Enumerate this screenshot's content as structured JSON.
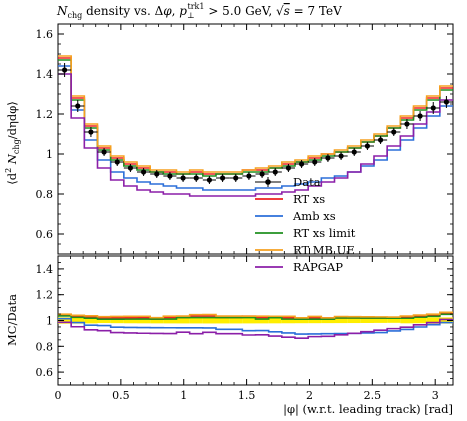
{
  "chart_data": {
    "type": "line",
    "title": "N_chg density vs. Δφ, p⊥^trk1 > 5.0 GeV, √s = 7 TeV",
    "title_parts": {
      "n": "N",
      "n_sub": "chg",
      "mid": " density vs. Δ",
      "phi": "φ",
      "comma": ", ",
      "p": "p",
      "p_sub": "⊥",
      "p_sup": "trk1",
      "cut": " > 5.0 GeV, ",
      "sqrt": "√",
      "s": "s",
      "energy": " = 7 TeV"
    },
    "ylabel_main": "⟨d²N_chg/dηdφ⟩",
    "ylabel_main_parts": {
      "open": "⟨d",
      "sq": "2",
      "n": " N",
      "n_sub": "chg",
      "rest": "/dηdφ⟩"
    },
    "ylabel_ratio": "MC/Data",
    "xlabel": "|φ| (w.r.t. leading track) [rad]",
    "xlim": [
      0,
      3.14159
    ],
    "ylim_main": [
      0.5,
      1.65
    ],
    "ylim_ratio": [
      0.5,
      1.5
    ],
    "x_ticks": [
      0,
      0.5,
      1,
      1.5,
      2,
      2.5,
      3
    ],
    "x_tick_labels": [
      "0",
      "0.5",
      "1",
      "1.5",
      "2",
      "2.5",
      "3"
    ],
    "y_ticks_main": [
      0.6,
      0.8,
      1,
      1.2,
      1.4,
      1.6
    ],
    "y_tick_labels_main": [
      "0.6",
      "0.8",
      "1",
      "1.2",
      "1.4",
      "1.6"
    ],
    "y_ticks_ratio": [
      0.6,
      0.8,
      1,
      1.2,
      1.4
    ],
    "y_tick_labels_ratio": [
      "0.6",
      "0.8",
      "1",
      "1.2",
      "1.4"
    ],
    "legend_position": "center-right",
    "data_band_color": "#ffee00",
    "x": [
      0.0524,
      0.1571,
      0.2618,
      0.3665,
      0.4712,
      0.576,
      0.6807,
      0.7854,
      0.8901,
      0.9948,
      1.0996,
      1.2043,
      1.309,
      1.4137,
      1.5184,
      1.6232,
      1.7279,
      1.8326,
      1.9373,
      2.042,
      2.1468,
      2.2515,
      2.3562,
      2.4609,
      2.5656,
      2.6704,
      2.7751,
      2.8798,
      2.9845,
      3.0892
    ],
    "series": [
      {
        "name": "Data",
        "color": "#000000",
        "style": "markers",
        "values": [
          1.42,
          1.24,
          1.11,
          1.01,
          0.96,
          0.93,
          0.91,
          0.9,
          0.89,
          0.88,
          0.88,
          0.87,
          0.88,
          0.88,
          0.89,
          0.9,
          0.91,
          0.93,
          0.95,
          0.96,
          0.98,
          0.99,
          1.01,
          1.04,
          1.07,
          1.11,
          1.15,
          1.19,
          1.23,
          1.26
        ],
        "errors": [
          0.035,
          0.03,
          0.025,
          0.02,
          0.02,
          0.02,
          0.02,
          0.02,
          0.02,
          0.02,
          0.02,
          0.02,
          0.02,
          0.02,
          0.02,
          0.02,
          0.02,
          0.02,
          0.02,
          0.02,
          0.02,
          0.02,
          0.02,
          0.02,
          0.02,
          0.02,
          0.025,
          0.025,
          0.03,
          0.03
        ]
      },
      {
        "name": "RT xs",
        "color": "#ee2222",
        "style": "histogram",
        "values": [
          1.48,
          1.28,
          1.14,
          1.03,
          0.98,
          0.95,
          0.93,
          0.91,
          0.91,
          0.9,
          0.91,
          0.9,
          0.9,
          0.9,
          0.92,
          0.92,
          0.93,
          0.95,
          0.96,
          0.98,
          1.0,
          1.01,
          1.03,
          1.06,
          1.09,
          1.13,
          1.18,
          1.23,
          1.28,
          1.33
        ]
      },
      {
        "name": "Amb xs",
        "color": "#2b6fd9",
        "style": "histogram",
        "values": [
          1.44,
          1.22,
          1.07,
          0.97,
          0.91,
          0.88,
          0.86,
          0.85,
          0.84,
          0.83,
          0.83,
          0.82,
          0.82,
          0.82,
          0.82,
          0.83,
          0.83,
          0.84,
          0.85,
          0.86,
          0.88,
          0.89,
          0.91,
          0.94,
          0.97,
          1.02,
          1.07,
          1.13,
          1.19,
          1.24
        ]
      },
      {
        "name": "RT xs limit",
        "color": "#209020",
        "style": "histogram",
        "values": [
          1.47,
          1.27,
          1.13,
          1.02,
          0.97,
          0.94,
          0.92,
          0.91,
          0.9,
          0.9,
          0.9,
          0.89,
          0.9,
          0.9,
          0.91,
          0.91,
          0.93,
          0.94,
          0.96,
          0.97,
          0.99,
          1.01,
          1.03,
          1.06,
          1.09,
          1.13,
          1.17,
          1.22,
          1.27,
          1.32
        ]
      },
      {
        "name": "RT MB UE",
        "color": "#f5a020",
        "style": "histogram",
        "values": [
          1.49,
          1.29,
          1.15,
          1.04,
          0.99,
          0.96,
          0.94,
          0.92,
          0.92,
          0.91,
          0.92,
          0.91,
          0.91,
          0.91,
          0.92,
          0.93,
          0.94,
          0.96,
          0.97,
          0.99,
          1.0,
          1.02,
          1.04,
          1.07,
          1.1,
          1.14,
          1.19,
          1.24,
          1.29,
          1.34
        ]
      },
      {
        "name": "RAPGAP",
        "color": "#8b1fa8",
        "style": "histogram",
        "values": [
          1.4,
          1.18,
          1.03,
          0.93,
          0.87,
          0.84,
          0.82,
          0.81,
          0.8,
          0.8,
          0.79,
          0.79,
          0.79,
          0.79,
          0.79,
          0.8,
          0.8,
          0.81,
          0.82,
          0.84,
          0.86,
          0.88,
          0.91,
          0.95,
          0.99,
          1.04,
          1.09,
          1.15,
          1.21,
          1.27
        ]
      }
    ]
  }
}
